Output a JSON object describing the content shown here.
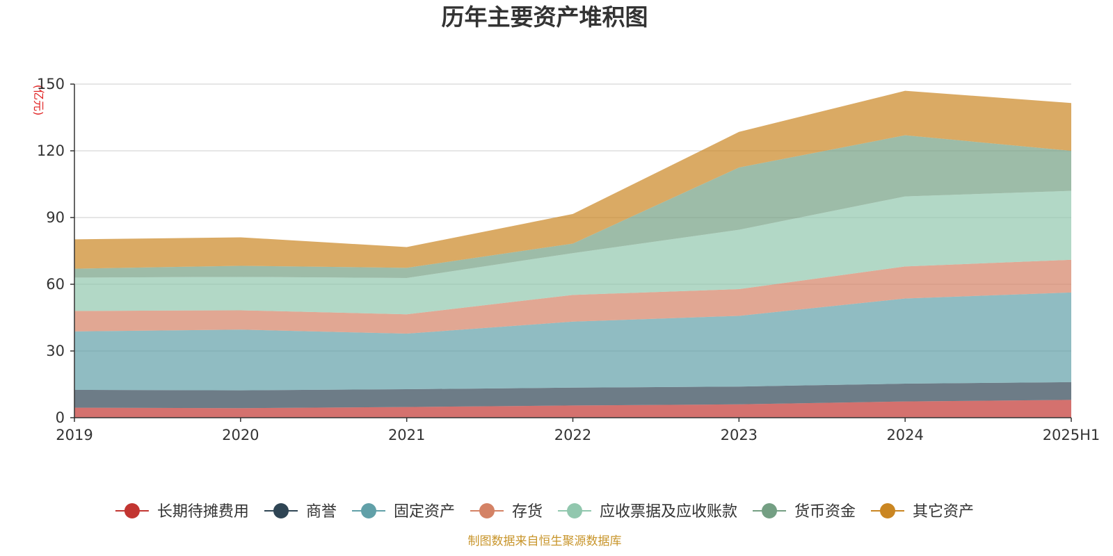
{
  "chart_data": {
    "type": "area",
    "stacked": true,
    "title": "历年主要资产堆积图",
    "ylabel": "(亿元)",
    "xlabel": "",
    "ylim": [
      0,
      150
    ],
    "yticks": [
      0,
      30,
      60,
      90,
      120,
      150
    ],
    "categories": [
      "2019",
      "2020",
      "2021",
      "2022",
      "2023",
      "2024",
      "2025H1"
    ],
    "grid": true,
    "legend_position": "bottom",
    "series": [
      {
        "name": "长期待摊费用",
        "color": "#c23531",
        "values": [
          4.5,
          4.3,
          4.8,
          5.5,
          6.0,
          7.3,
          8.0
        ]
      },
      {
        "name": "商誉",
        "color": "#2f4554",
        "values": [
          8.0,
          8.0,
          8.0,
          8.0,
          8.0,
          8.0,
          8.0
        ]
      },
      {
        "name": "固定资产",
        "color": "#61a0a8",
        "values": [
          26.3,
          27.3,
          25.0,
          29.7,
          31.8,
          38.3,
          40.3
        ]
      },
      {
        "name": "存货",
        "color": "#d48265",
        "values": [
          9.2,
          8.7,
          8.7,
          12.0,
          12.0,
          14.4,
          14.7
        ]
      },
      {
        "name": "应收票据及应收账款",
        "color": "#91c7ae",
        "values": [
          15.0,
          15.0,
          16.3,
          18.8,
          26.7,
          31.5,
          31.0
        ]
      },
      {
        "name": "货币资金",
        "color": "#749f83",
        "values": [
          4.0,
          5.0,
          4.6,
          4.3,
          28.0,
          27.5,
          18.0
        ]
      },
      {
        "name": "其它资产",
        "color": "#ca8622",
        "values": [
          13.2,
          12.8,
          9.3,
          13.3,
          16.0,
          20.0,
          21.5
        ]
      }
    ]
  },
  "footer": {
    "source": "制图数据来自恒生聚源数据库"
  }
}
